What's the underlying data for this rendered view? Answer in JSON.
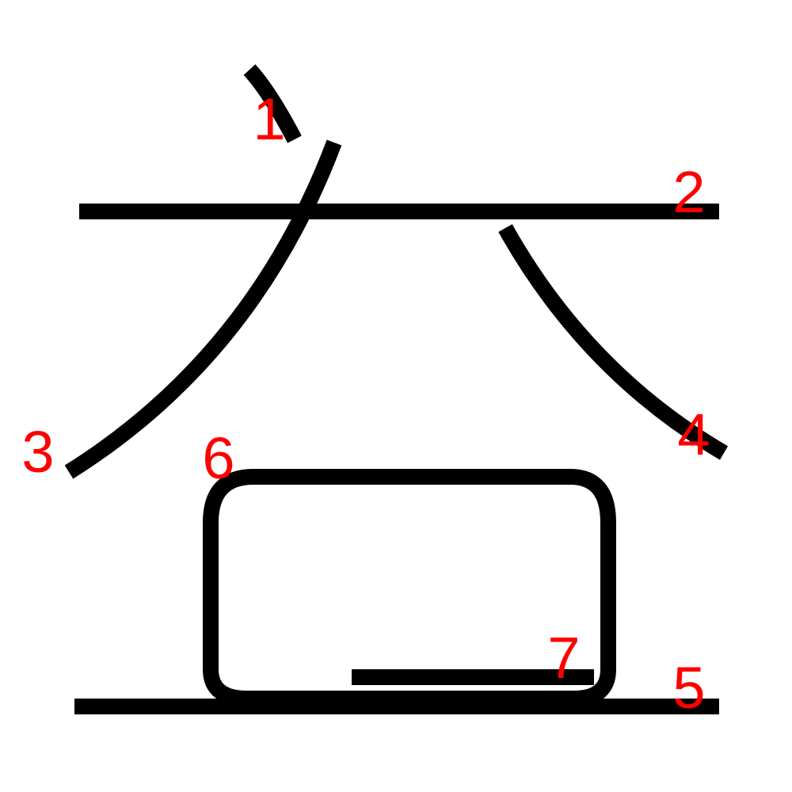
{
  "diagram": {
    "stroke_color": "#000000",
    "label_color": "#ff0000",
    "strokes": [
      {
        "order": 1,
        "label": "1"
      },
      {
        "order": 2,
        "label": "2"
      },
      {
        "order": 3,
        "label": "3"
      },
      {
        "order": 4,
        "label": "4"
      },
      {
        "order": 5,
        "label": "5"
      },
      {
        "order": 6,
        "label": "6"
      },
      {
        "order": 7,
        "label": "7"
      }
    ]
  }
}
